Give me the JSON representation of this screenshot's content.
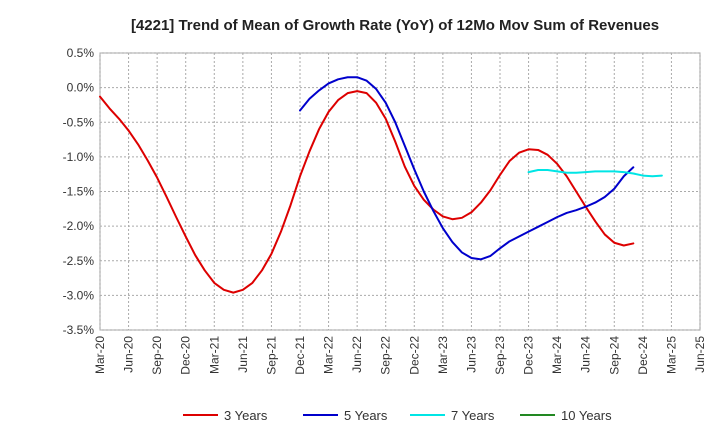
{
  "chart_data": {
    "type": "line",
    "title": "[4221]  Trend of Mean of Growth Rate (YoY) of 12Mo Mov Sum of Revenues",
    "xlabel": "",
    "ylabel": "",
    "ylim": [
      -3.5,
      0.5
    ],
    "y_ticks": [
      0.5,
      0.0,
      -0.5,
      -1.0,
      -1.5,
      -2.0,
      -2.5,
      -3.0,
      -3.5
    ],
    "y_tick_labels": [
      "0.5%",
      "0.0%",
      "-0.5%",
      "-1.0%",
      "-1.5%",
      "-2.0%",
      "-2.5%",
      "-3.0%",
      "-3.5%"
    ],
    "x_tick_labels": [
      "Mar-20",
      "Jun-20",
      "Sep-20",
      "Dec-20",
      "Mar-21",
      "Jun-21",
      "Sep-21",
      "Dec-21",
      "Mar-22",
      "Jun-22",
      "Sep-22",
      "Dec-22",
      "Mar-23",
      "Jun-23",
      "Sep-23",
      "Dec-23",
      "Mar-24",
      "Jun-24",
      "Sep-24",
      "Dec-24",
      "Mar-25",
      "Jun-25"
    ],
    "grid": true,
    "legend_position": "bottom",
    "series": [
      {
        "name": "3 Years",
        "color": "#dd0000",
        "start_month": 0,
        "values": [
          -0.13,
          -0.3,
          -0.45,
          -0.62,
          -0.82,
          -1.05,
          -1.3,
          -1.58,
          -1.87,
          -2.15,
          -2.42,
          -2.64,
          -2.82,
          -2.92,
          -2.96,
          -2.92,
          -2.82,
          -2.64,
          -2.4,
          -2.08,
          -1.7,
          -1.28,
          -0.92,
          -0.6,
          -0.35,
          -0.18,
          -0.08,
          -0.05,
          -0.08,
          -0.22,
          -0.45,
          -0.78,
          -1.14,
          -1.42,
          -1.62,
          -1.76,
          -1.86,
          -1.9,
          -1.88,
          -1.8,
          -1.66,
          -1.48,
          -1.26,
          -1.06,
          -0.94,
          -0.89,
          -0.9,
          -0.97,
          -1.1,
          -1.28,
          -1.5,
          -1.72,
          -1.93,
          -2.12,
          -2.24,
          -2.28,
          -2.25
        ]
      },
      {
        "name": "5 Years",
        "color": "#0000cc",
        "start_month": 21,
        "values": [
          -0.33,
          -0.16,
          -0.04,
          0.06,
          0.12,
          0.15,
          0.15,
          0.1,
          -0.02,
          -0.22,
          -0.5,
          -0.84,
          -1.18,
          -1.5,
          -1.78,
          -2.03,
          -2.23,
          -2.38,
          -2.46,
          -2.48,
          -2.43,
          -2.32,
          -2.22,
          -2.15,
          -2.08,
          -2.01,
          -1.94,
          -1.87,
          -1.81,
          -1.77,
          -1.72,
          -1.66,
          -1.58,
          -1.46,
          -1.28,
          -1.15
        ]
      },
      {
        "name": "7 Years",
        "color": "#00e5e5",
        "start_month": 45,
        "values": [
          -1.22,
          -1.19,
          -1.19,
          -1.21,
          -1.23,
          -1.23,
          -1.22,
          -1.21,
          -1.21,
          -1.21,
          -1.22,
          -1.24,
          -1.27,
          -1.28,
          -1.27
        ]
      },
      {
        "name": "10 Years",
        "color": "#228822",
        "start_month": 0,
        "values": []
      }
    ]
  }
}
